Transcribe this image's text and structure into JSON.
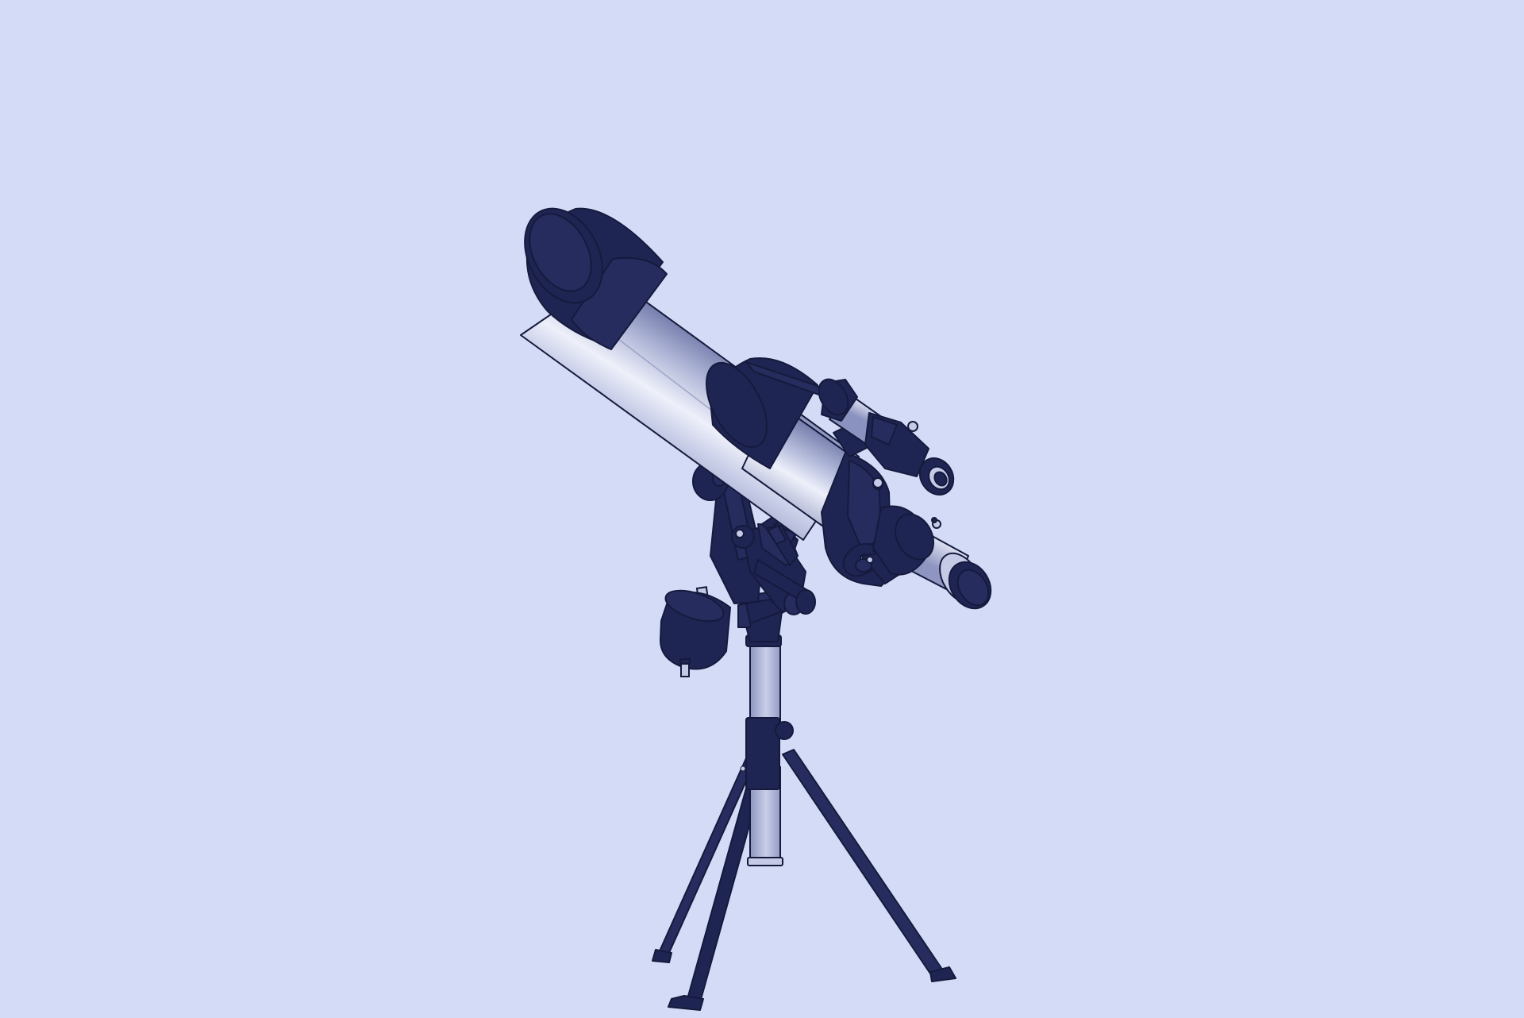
{
  "scene": {
    "subject": "refractor-telescope-on-tripod",
    "colors": {
      "background": "#d3dbf6",
      "dark": "#1f2552",
      "dark_alt": "#262d5e",
      "outline": "#151a3d",
      "tube_light": "#e9ecf9",
      "tube_mid": "#b9c0df",
      "tube_shadow": "#7d86b4",
      "metal_light": "#c5cbe6"
    }
  }
}
